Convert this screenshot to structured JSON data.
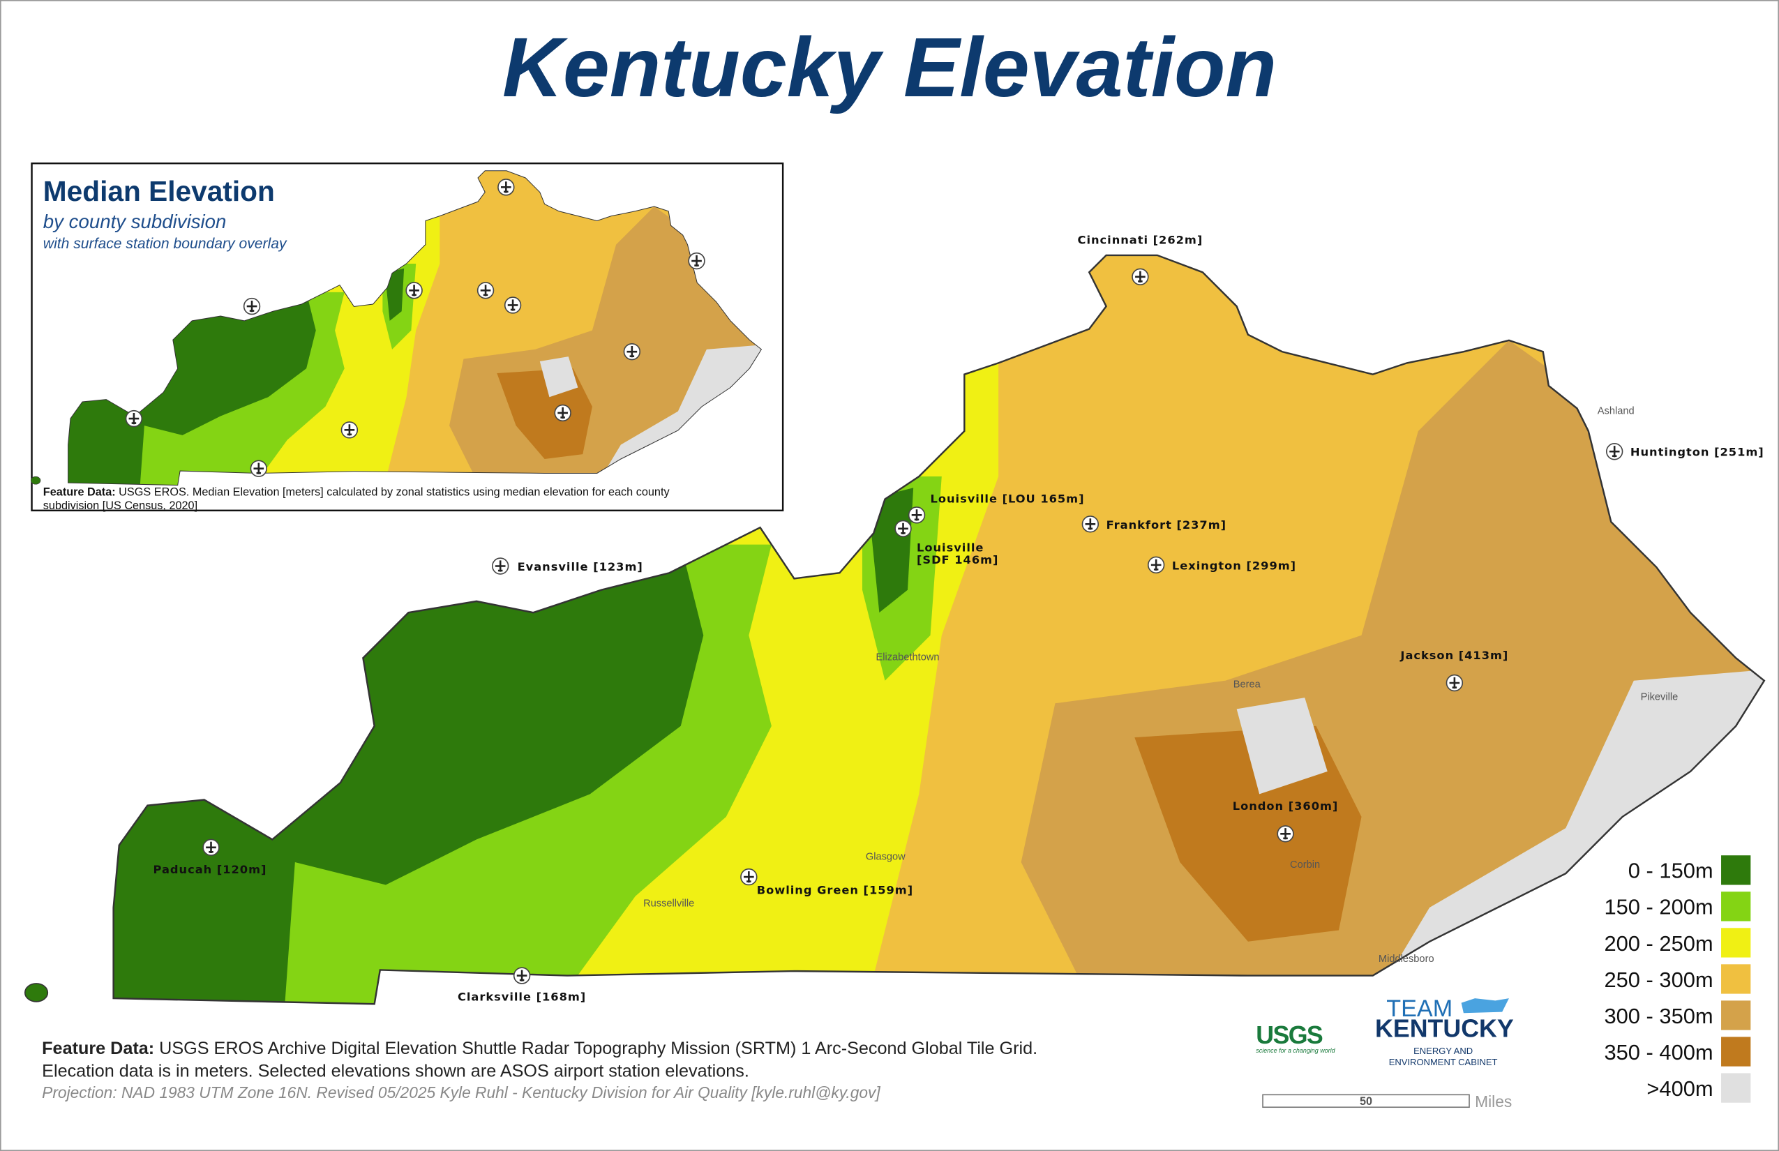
{
  "title": "Kentucky Elevation",
  "inset": {
    "title": "Median Elevation",
    "subtitle": "by county subdivision",
    "subtitle2": "with surface station boundary overlay",
    "note_label": "Feature Data:",
    "note_line1": "USGS EROS. Median Elevation [meters] calculated by zonal statistics using median elevation for each county",
    "note_line2": "subdivision [US Census, 2020]"
  },
  "stations": [
    {
      "lines": [
        "Cincinnati [262m]"
      ]
    },
    {
      "lines": [
        "Louisville [LOU 165m]"
      ]
    },
    {
      "lines": [
        "Louisville",
        "[SDF 146m]"
      ]
    },
    {
      "lines": [
        "Frankfort [237m]"
      ]
    },
    {
      "lines": [
        "Lexington [299m]"
      ]
    },
    {
      "lines": [
        "Huntington [251m]"
      ]
    },
    {
      "lines": [
        "Evansville [123m]"
      ]
    },
    {
      "lines": [
        "Jackson [413m]"
      ]
    },
    {
      "lines": [
        "London [360m]"
      ]
    },
    {
      "lines": [
        "Paducah [120m]"
      ]
    },
    {
      "lines": [
        "Bowling Green [159m]"
      ]
    },
    {
      "lines": [
        "Clarksville [168m]"
      ]
    }
  ],
  "towns": [
    "Ashland",
    "Elizabethtown",
    "Berea",
    "Pikeville",
    "Glasgow",
    "Russellville",
    "Corbin",
    "Middlesboro"
  ],
  "legend": [
    {
      "label": "0 - 150m",
      "color": "#2e7a0c"
    },
    {
      "label": "150 - 200m",
      "color": "#84d414"
    },
    {
      "label": "200 - 250m",
      "color": "#f0f014"
    },
    {
      "label": "250 - 300m",
      "color": "#f0c040"
    },
    {
      "label": "300 - 350m",
      "color": "#d4a24a"
    },
    {
      "label": "350 - 400m",
      "color": "#c07a1e"
    },
    {
      "label": ">400m",
      "color": "#e0e0e0"
    }
  ],
  "footer": {
    "label": "Feature Data:",
    "line1": "USGS EROS Archive Digital Elevation Shuttle Radar Topography Mission (SRTM) 1 Arc-Second Global Tile Grid.",
    "line2": "Elecation data is in meters. Selected elevations shown are ASOS airport station elevations.",
    "line3": "Projection: NAD 1983 UTM Zone 16N. Revised 05/2025 Kyle Ruhl - Kentucky Division for Air Quality [kyle.ruhl@ky.gov]"
  },
  "logos": {
    "usgs": "USGS",
    "usgs_tag": "science for a changing world",
    "team": "TEAM",
    "kentucky": "KENTUCKY",
    "cabinet1": "ENERGY AND",
    "cabinet2": "ENVIRONMENT CABINET"
  },
  "scale": {
    "value": "50",
    "unit": "Miles"
  }
}
